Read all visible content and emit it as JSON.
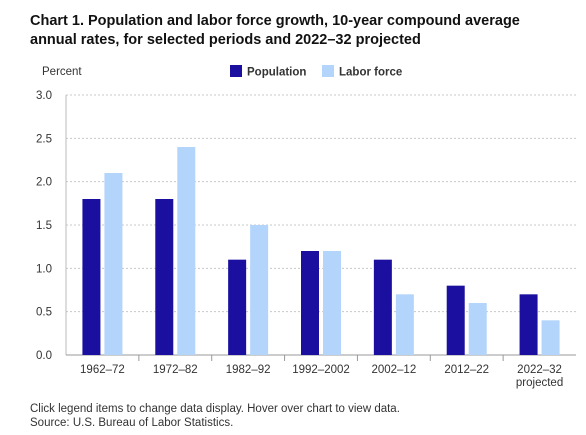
{
  "chart_data": {
    "type": "bar",
    "title": "Chart 1. Population and labor force growth, 10-year compound average annual rates, for selected periods and 2022–32 projected",
    "ylabel": "Percent",
    "xlabel": "",
    "categories": [
      [
        "1962–72"
      ],
      [
        "1972–82"
      ],
      [
        "1982–92"
      ],
      [
        "1992–2002"
      ],
      [
        "2002–12"
      ],
      [
        "2012–22"
      ],
      [
        "2022–32",
        "projected"
      ]
    ],
    "series": [
      {
        "name": "Population",
        "color": "#1a0f9e",
        "values": [
          1.8,
          1.8,
          1.1,
          1.2,
          1.1,
          0.8,
          0.7
        ]
      },
      {
        "name": "Labor force",
        "color": "#b3d4fb",
        "values": [
          2.1,
          2.4,
          1.5,
          1.2,
          0.7,
          0.6,
          0.4
        ]
      }
    ],
    "ylim": [
      0,
      3.0
    ],
    "yticks": [
      "0.0",
      "0.5",
      "1.0",
      "1.5",
      "2.0",
      "2.5",
      "3.0"
    ],
    "grid": true,
    "legend_position": "top"
  },
  "notes": {
    "interaction": "Click legend items to change data display. Hover over chart to view data.",
    "source": "Source: U.S. Bureau of Labor Statistics."
  }
}
